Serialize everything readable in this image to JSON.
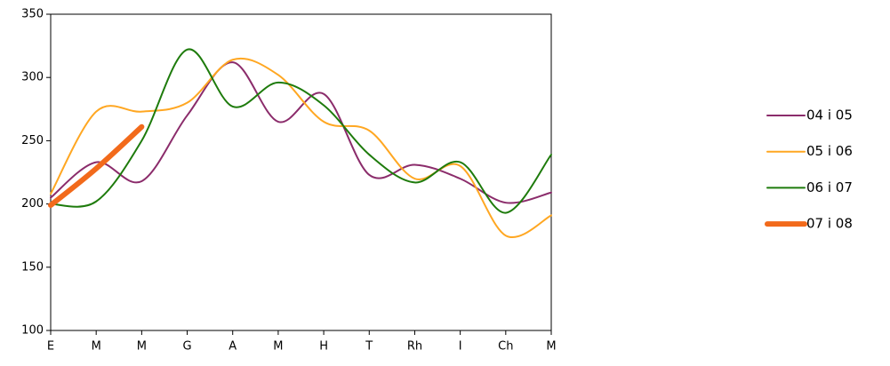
{
  "chart_data": {
    "type": "line",
    "categories": [
      "E",
      "M",
      "M",
      "G",
      "A",
      "M",
      "H",
      "T",
      "Rh",
      "I",
      "Ch",
      "M"
    ],
    "series": [
      {
        "name": "04 i 05",
        "color": "#8b2c6b",
        "width": 2,
        "values": [
          205,
          233,
          218,
          270,
          312,
          265,
          287,
          223,
          231,
          220,
          201,
          209
        ]
      },
      {
        "name": "05 i 06",
        "color": "#ffa722",
        "width": 2,
        "values": [
          208,
          273,
          273,
          280,
          314,
          302,
          265,
          258,
          220,
          230,
          175,
          191
        ]
      },
      {
        "name": "06 i 07",
        "color": "#1e7b0c",
        "width": 2,
        "values": [
          200,
          202,
          250,
          322,
          277,
          296,
          278,
          239,
          217,
          233,
          193,
          239
        ]
      },
      {
        "name": "07 i 08",
        "color": "#f26a1b",
        "width": 6,
        "values": [
          199,
          228,
          261,
          null,
          null,
          null,
          null,
          null,
          null,
          null,
          null,
          null
        ]
      }
    ],
    "ylim": [
      100,
      350
    ],
    "yticks": [
      100,
      150,
      200,
      250,
      300,
      350
    ],
    "smooth": true
  }
}
